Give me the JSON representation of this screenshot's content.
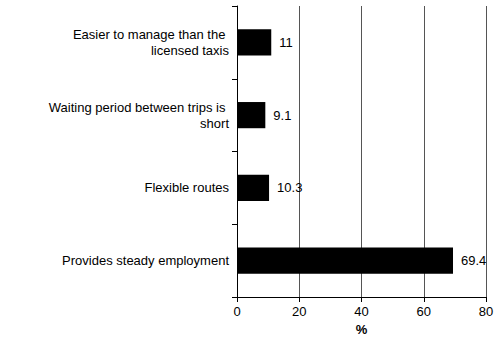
{
  "chart_data": {
    "type": "bar",
    "orientation": "horizontal",
    "categories": [
      "Easier to manage than the licensed taxis",
      "Waiting period between trips is short",
      "Flexible routes",
      "Provides steady employment"
    ],
    "values": [
      11,
      9.1,
      10.3,
      69.4
    ],
    "color": "#000000",
    "x_label": "%",
    "xlim": [
      0,
      80
    ],
    "xticks": [
      0,
      20,
      40,
      60,
      80
    ],
    "grid": true,
    "data_labels": true
  }
}
